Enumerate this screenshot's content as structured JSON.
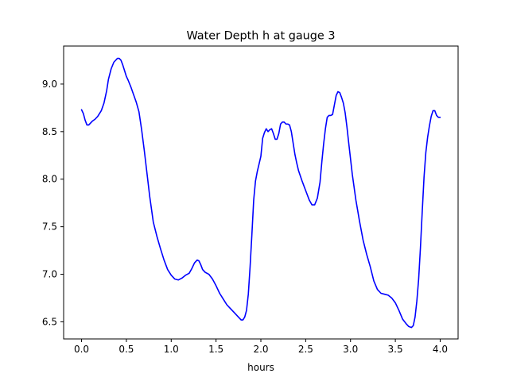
{
  "chart_data": {
    "type": "line",
    "title": "Water Depth h at gauge 3",
    "xlabel": "hours",
    "ylabel": "",
    "xlim": [
      -0.2,
      4.2
    ],
    "ylim": [
      6.32,
      9.4
    ],
    "xticks": [
      0.0,
      0.5,
      1.0,
      1.5,
      2.0,
      2.5,
      3.0,
      3.5,
      4.0
    ],
    "xtick_labels": [
      "0.0",
      "0.5",
      "1.0",
      "1.5",
      "2.0",
      "2.5",
      "3.0",
      "3.5",
      "4.0"
    ],
    "yticks": [
      6.5,
      7.0,
      7.5,
      8.0,
      8.5,
      9.0
    ],
    "ytick_labels": [
      "6.5",
      "7.0",
      "7.5",
      "8.0",
      "8.5",
      "9.0"
    ],
    "grid": false,
    "series": [
      {
        "color": "#0000ff",
        "x": [
          0.0,
          0.02,
          0.04,
          0.06,
          0.08,
          0.1,
          0.12,
          0.15,
          0.18,
          0.2,
          0.22,
          0.25,
          0.28,
          0.3,
          0.33,
          0.36,
          0.4,
          0.42,
          0.44,
          0.46,
          0.48,
          0.5,
          0.52,
          0.55,
          0.58,
          0.61,
          0.64,
          0.67,
          0.7,
          0.73,
          0.76,
          0.8,
          0.84,
          0.88,
          0.92,
          0.96,
          1.0,
          1.04,
          1.08,
          1.12,
          1.16,
          1.2,
          1.23,
          1.26,
          1.29,
          1.31,
          1.33,
          1.35,
          1.38,
          1.42,
          1.46,
          1.5,
          1.54,
          1.58,
          1.62,
          1.66,
          1.7,
          1.73,
          1.76,
          1.78,
          1.8,
          1.82,
          1.84,
          1.86,
          1.88,
          1.9,
          1.92,
          1.94,
          1.96,
          1.98,
          2.0,
          2.02,
          2.04,
          2.06,
          2.08,
          2.1,
          2.12,
          2.14,
          2.16,
          2.18,
          2.2,
          2.22,
          2.24,
          2.26,
          2.28,
          2.3,
          2.32,
          2.34,
          2.36,
          2.38,
          2.4,
          2.42,
          2.46,
          2.5,
          2.54,
          2.57,
          2.6,
          2.63,
          2.66,
          2.68,
          2.7,
          2.72,
          2.74,
          2.76,
          2.78,
          2.8,
          2.82,
          2.84,
          2.86,
          2.88,
          2.9,
          2.92,
          2.94,
          2.96,
          2.98,
          3.02,
          3.06,
          3.1,
          3.14,
          3.18,
          3.22,
          3.26,
          3.3,
          3.34,
          3.38,
          3.42,
          3.46,
          3.5,
          3.54,
          3.58,
          3.62,
          3.65,
          3.68,
          3.7,
          3.72,
          3.74,
          3.76,
          3.78,
          3.8,
          3.82,
          3.84,
          3.86,
          3.88,
          3.9,
          3.92,
          3.94,
          3.96,
          3.98,
          4.0
        ],
        "y": [
          8.73,
          8.69,
          8.62,
          8.57,
          8.57,
          8.59,
          8.61,
          8.63,
          8.66,
          8.69,
          8.72,
          8.8,
          8.93,
          9.05,
          9.16,
          9.23,
          9.27,
          9.27,
          9.25,
          9.2,
          9.14,
          9.08,
          9.04,
          8.97,
          8.89,
          8.81,
          8.71,
          8.52,
          8.3,
          8.06,
          7.82,
          7.55,
          7.4,
          7.27,
          7.15,
          7.05,
          6.99,
          6.95,
          6.94,
          6.96,
          6.99,
          7.01,
          7.06,
          7.12,
          7.15,
          7.14,
          7.1,
          7.05,
          7.02,
          7.0,
          6.95,
          6.88,
          6.8,
          6.74,
          6.68,
          6.64,
          6.6,
          6.57,
          6.54,
          6.52,
          6.52,
          6.55,
          6.62,
          6.79,
          7.08,
          7.42,
          7.78,
          7.98,
          8.08,
          8.16,
          8.24,
          8.43,
          8.49,
          8.53,
          8.5,
          8.52,
          8.53,
          8.48,
          8.42,
          8.42,
          8.48,
          8.58,
          8.6,
          8.6,
          8.58,
          8.58,
          8.57,
          8.5,
          8.38,
          8.26,
          8.17,
          8.09,
          7.98,
          7.88,
          7.78,
          7.73,
          7.73,
          7.8,
          7.97,
          8.18,
          8.37,
          8.53,
          8.65,
          8.67,
          8.67,
          8.68,
          8.78,
          8.88,
          8.92,
          8.91,
          8.86,
          8.8,
          8.7,
          8.55,
          8.38,
          8.05,
          7.78,
          7.56,
          7.36,
          7.21,
          7.08,
          6.93,
          6.84,
          6.8,
          6.79,
          6.78,
          6.75,
          6.7,
          6.62,
          6.53,
          6.48,
          6.45,
          6.44,
          6.46,
          6.55,
          6.72,
          6.95,
          7.28,
          7.66,
          8.02,
          8.28,
          8.44,
          8.56,
          8.66,
          8.72,
          8.72,
          8.67,
          8.65,
          8.65
        ]
      }
    ]
  }
}
